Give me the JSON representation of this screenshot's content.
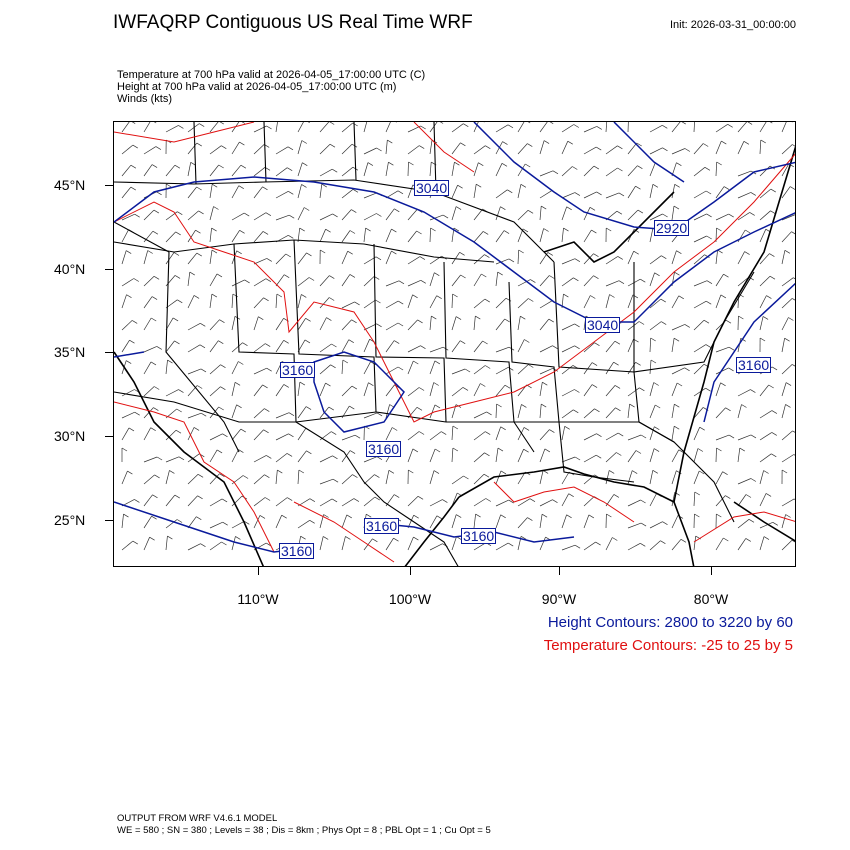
{
  "header": {
    "title": "IWFAQRP Contiguous US Real Time WRF",
    "init": "Init: 2026-03-31_00:00:00"
  },
  "fields": [
    "Temperature at 700 hPa valid at 2026-04-05_17:00:00 UTC   (C)",
    "Height at 700 hPa valid at 2026-04-05_17:00:00 UTC   (m)",
    "Winds   (kts)"
  ],
  "axes": {
    "lat_labels": [
      "45°N",
      "40°N",
      "35°N",
      "30°N",
      "25°N"
    ],
    "lon_labels": [
      "110°W",
      "100°W",
      "90°W",
      "80°W"
    ]
  },
  "contour_labels": {
    "height": [
      "3040",
      "2920",
      "3040",
      "3160",
      "3160",
      "3160",
      "3160",
      "3160",
      "3160"
    ]
  },
  "legend": {
    "height": "Height Contours: 2800 to 3220 by 60",
    "temperature": "Temperature Contours: -25 to 25 by 5"
  },
  "colors": {
    "height": "#0a1a9b",
    "temperature": "#e01010",
    "boundaries": "#000000",
    "barbs": "#333333"
  },
  "footer": {
    "line1": "OUTPUT FROM WRF V4.6.1 MODEL",
    "line2": "WE = 580 ; SN = 380 ; Levels = 38 ; Dis = 8km ; Phys Opt = 8 ; PBL Opt = 1 ; Cu Opt = 5"
  }
}
